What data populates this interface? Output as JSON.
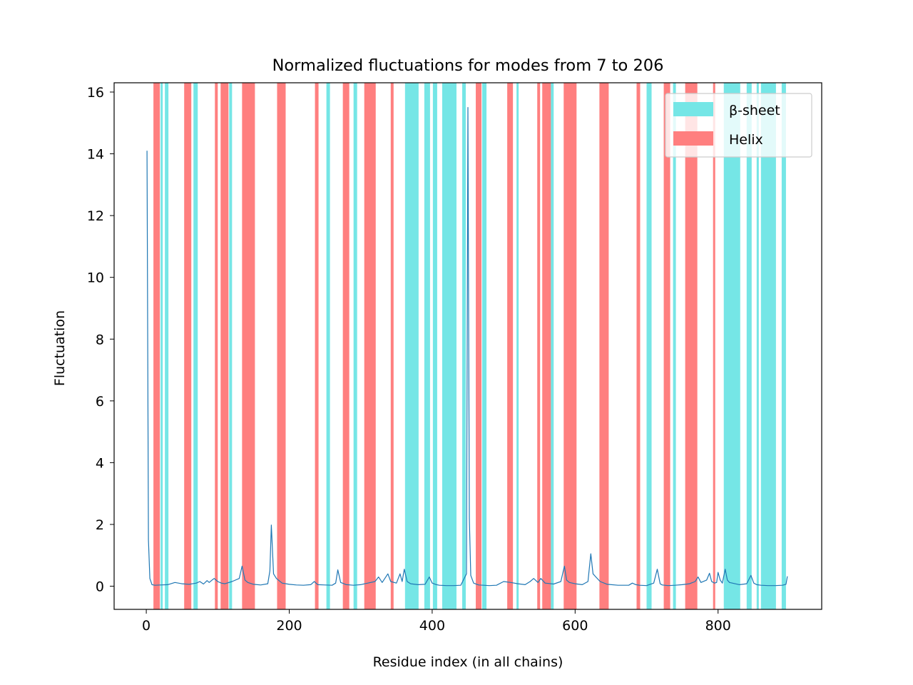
{
  "chart_data": {
    "type": "line",
    "title": "Normalized fluctuations for modes from 7 to 206",
    "xlabel": "Residue index (in all chains)",
    "ylabel": "Fluctuation",
    "xlim": [
      -45,
      945
    ],
    "ylim": [
      -0.75,
      16.3
    ],
    "xticks": [
      0,
      200,
      400,
      600,
      800
    ],
    "yticks": [
      0,
      2,
      4,
      6,
      8,
      10,
      12,
      14,
      16
    ],
    "grid": false,
    "legend": {
      "placement": "top-right",
      "entries": [
        {
          "label": "β-sheet",
          "color": "#75e6e6"
        },
        {
          "label": "Helix",
          "color": "#ff7f7f"
        }
      ]
    },
    "colors": {
      "line": "#1f77b4",
      "sheet": "#75e6e6",
      "helix": "#ff7f7f"
    },
    "helix_regions": [
      [
        10,
        19
      ],
      [
        53,
        63
      ],
      [
        96,
        100
      ],
      [
        104,
        115
      ],
      [
        134,
        152
      ],
      [
        183,
        195
      ],
      [
        236,
        241
      ],
      [
        275,
        284
      ],
      [
        305,
        321
      ],
      [
        342,
        346
      ],
      [
        461,
        469
      ],
      [
        505,
        513
      ],
      [
        547,
        551
      ],
      [
        554,
        566
      ],
      [
        584,
        602
      ],
      [
        634,
        647
      ],
      [
        686,
        691
      ],
      [
        724,
        733
      ],
      [
        754,
        771
      ],
      [
        793,
        796
      ]
    ],
    "sheet_regions": [
      [
        20,
        23
      ],
      [
        26,
        31
      ],
      [
        66,
        72
      ],
      [
        116,
        120
      ],
      [
        252,
        257
      ],
      [
        290,
        295
      ],
      [
        362,
        381
      ],
      [
        389,
        397
      ],
      [
        401,
        407
      ],
      [
        414,
        434
      ],
      [
        442,
        447
      ],
      [
        470,
        476
      ],
      [
        518,
        521
      ],
      [
        565,
        570
      ],
      [
        700,
        707
      ],
      [
        737,
        741
      ],
      [
        808,
        831
      ],
      [
        840,
        847
      ],
      [
        854,
        857
      ],
      [
        860,
        881
      ],
      [
        889,
        895
      ]
    ],
    "series": [
      {
        "x": [
          1,
          3,
          5,
          8,
          12,
          20,
          30,
          40,
          50,
          60,
          70,
          75,
          80,
          85,
          88,
          92,
          95,
          100,
          105,
          110,
          120,
          130,
          134,
          138,
          142,
          150,
          160,
          170,
          173,
          175,
          178,
          182,
          190,
          200,
          210,
          220,
          230,
          235,
          240,
          250,
          260,
          265,
          268,
          272,
          280,
          290,
          300,
          310,
          320,
          325,
          330,
          338,
          342,
          350,
          355,
          358,
          361,
          365,
          370,
          380,
          390,
          396,
          400,
          406,
          410,
          420,
          430,
          440,
          448,
          450,
          452,
          454,
          458,
          465,
          480,
          490,
          500,
          510,
          520,
          530,
          537,
          542,
          548,
          552,
          558,
          570,
          580,
          585,
          588,
          592,
          600,
          610,
          618,
          622,
          625,
          629,
          635,
          645,
          660,
          675,
          680,
          685,
          690,
          700,
          710,
          715,
          719,
          722,
          730,
          740,
          750,
          760,
          768,
          772,
          776,
          784,
          788,
          791,
          795,
          798,
          800,
          803,
          806,
          810,
          813,
          816,
          820,
          830,
          840,
          846,
          850,
          854,
          860,
          870,
          880,
          890,
          895,
          897
        ],
        "y": [
          14.1,
          1.5,
          0.25,
          0.05,
          0.03,
          0.04,
          0.05,
          0.12,
          0.08,
          0.06,
          0.1,
          0.15,
          0.07,
          0.18,
          0.12,
          0.2,
          0.25,
          0.15,
          0.1,
          0.08,
          0.15,
          0.25,
          0.65,
          0.2,
          0.12,
          0.06,
          0.04,
          0.08,
          0.5,
          1.98,
          0.4,
          0.25,
          0.1,
          0.06,
          0.04,
          0.03,
          0.05,
          0.15,
          0.05,
          0.04,
          0.03,
          0.1,
          0.53,
          0.12,
          0.05,
          0.03,
          0.05,
          0.1,
          0.15,
          0.3,
          0.12,
          0.4,
          0.15,
          0.1,
          0.4,
          0.15,
          0.55,
          0.15,
          0.08,
          0.05,
          0.06,
          0.3,
          0.1,
          0.05,
          0.03,
          0.02,
          0.02,
          0.03,
          0.4,
          15.5,
          2.2,
          0.35,
          0.1,
          0.04,
          0.02,
          0.03,
          0.15,
          0.12,
          0.08,
          0.05,
          0.15,
          0.25,
          0.12,
          0.25,
          0.1,
          0.07,
          0.15,
          0.65,
          0.2,
          0.12,
          0.08,
          0.05,
          0.15,
          1.05,
          0.4,
          0.3,
          0.15,
          0.06,
          0.03,
          0.03,
          0.1,
          0.05,
          0.03,
          0.02,
          0.1,
          0.55,
          0.08,
          0.04,
          0.02,
          0.03,
          0.05,
          0.08,
          0.15,
          0.3,
          0.12,
          0.2,
          0.42,
          0.15,
          0.1,
          0.12,
          0.45,
          0.2,
          0.1,
          0.55,
          0.2,
          0.12,
          0.1,
          0.05,
          0.08,
          0.35,
          0.1,
          0.05,
          0.03,
          0.02,
          0.02,
          0.03,
          0.06,
          0.32
        ]
      }
    ]
  }
}
